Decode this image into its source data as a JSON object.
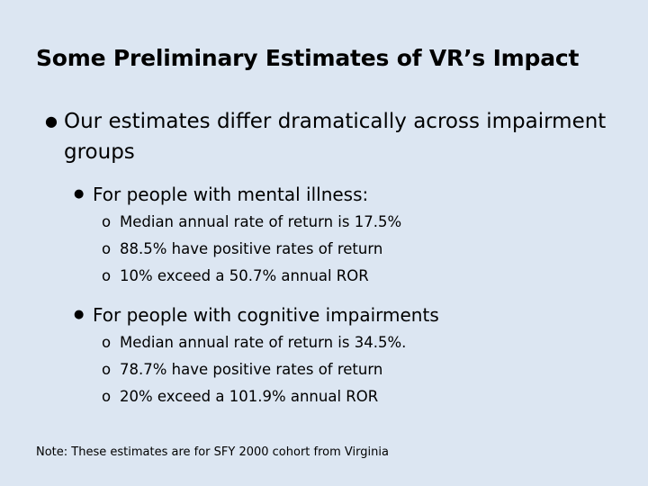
{
  "title": "Some Preliminary Estimates of VR’s Impact",
  "bullet_level1": {
    "marker": "●",
    "text": "Our estimates differ dramatically across impairment groups"
  },
  "groups": [
    {
      "marker": "●",
      "heading": "For people with mental illness:",
      "items": [
        {
          "marker": "o",
          "text": "Median annual rate of return is 17.5%"
        },
        {
          "marker": "o",
          "text": "88.5% have positive rates of return"
        },
        {
          "marker": "o",
          "text": "10% exceed a 50.7% annual ROR"
        }
      ]
    },
    {
      "marker": "●",
      "heading": "For people with cognitive impairments",
      "items": [
        {
          "marker": "o",
          "text": "Median annual rate of return is 34.5%."
        },
        {
          "marker": "o",
          "text": "78.7% have positive rates of return"
        },
        {
          "marker": "o",
          "text": "20% exceed a 101.9% annual ROR"
        }
      ]
    }
  ],
  "note": "Note:  These estimates are for SFY 2000 cohort from Virginia"
}
